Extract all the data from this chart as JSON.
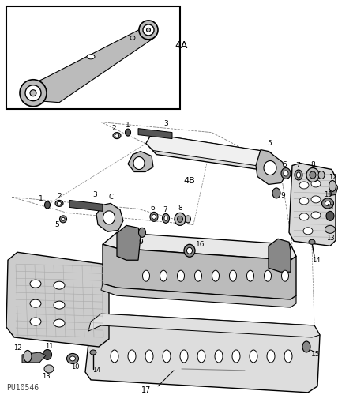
{
  "bg_color": "#ffffff",
  "line_color": "#000000",
  "fig_width": 4.28,
  "fig_height": 5.0,
  "dpi": 100,
  "watermark": "PU10546",
  "label_4A": "4A",
  "label_4B": "4B"
}
